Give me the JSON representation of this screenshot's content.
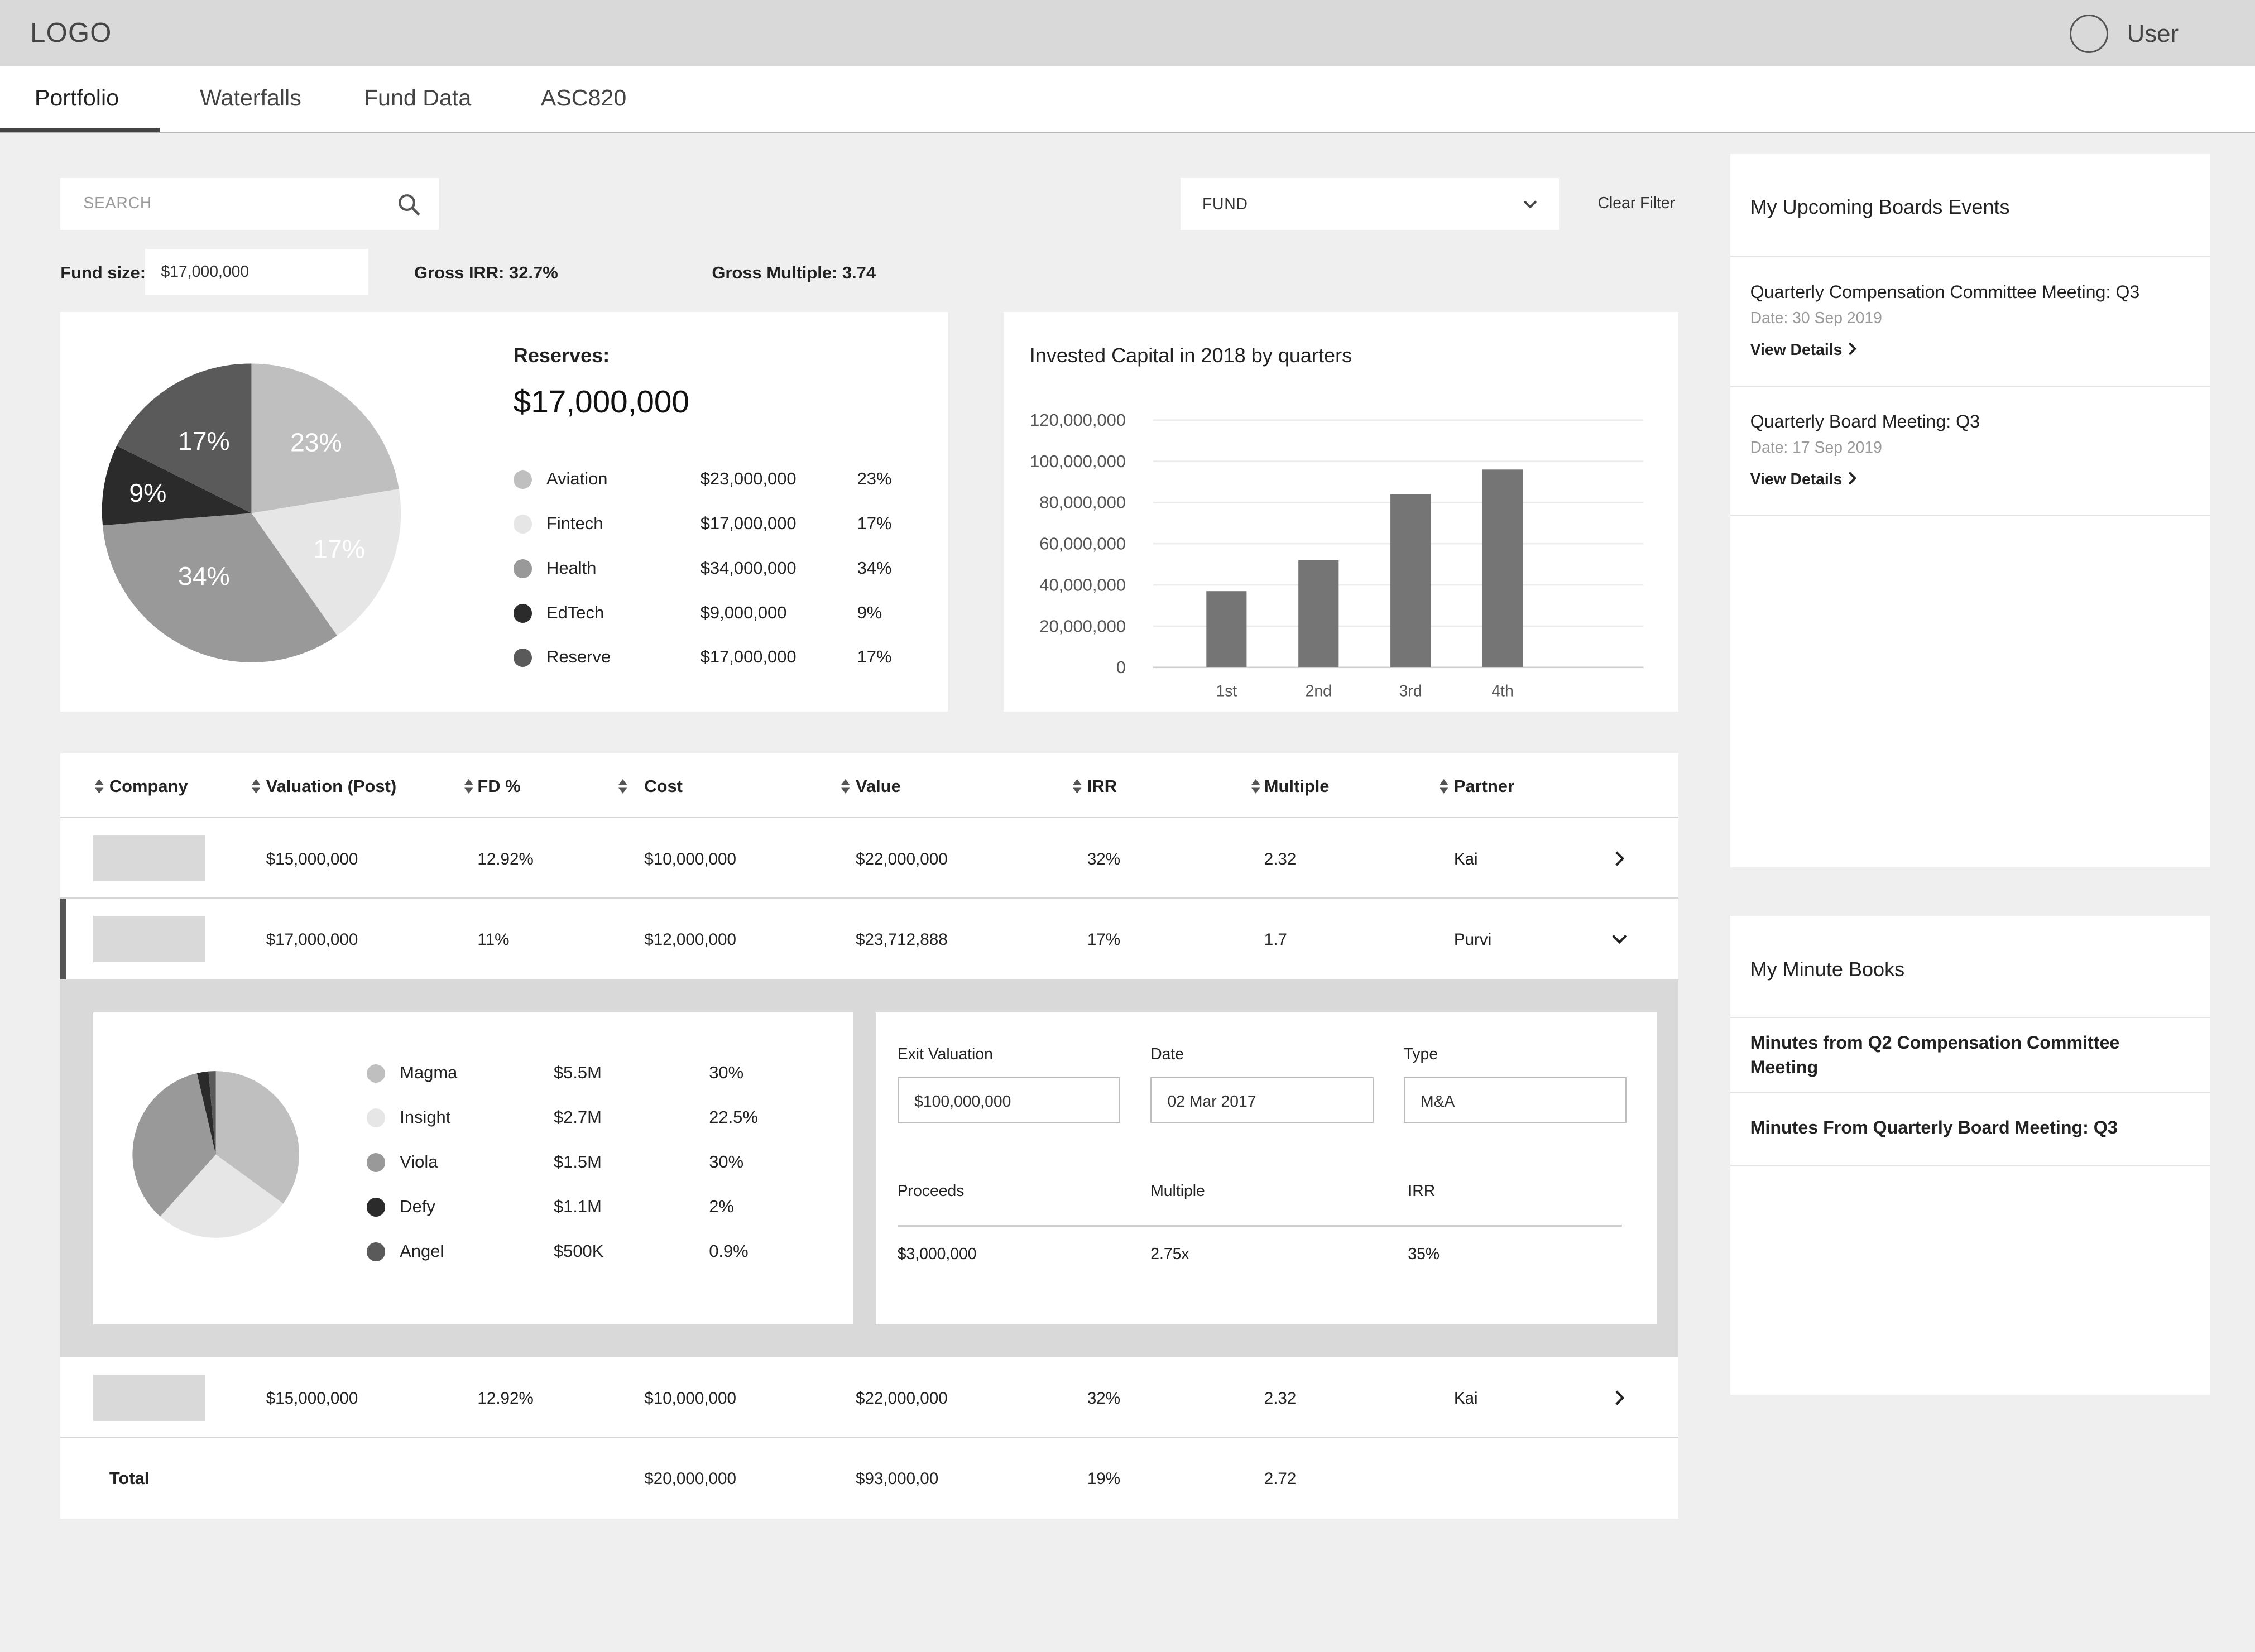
{
  "header": {
    "logo": "LOGO",
    "user_label": "User"
  },
  "tabs": [
    {
      "label": "Portfolio",
      "active": true
    },
    {
      "label": "Waterfalls",
      "active": false
    },
    {
      "label": "Fund Data",
      "active": false
    },
    {
      "label": "ASC820",
      "active": false
    }
  ],
  "filters": {
    "search_placeholder": "SEARCH",
    "fund_select": "FUND",
    "clear_filter": "Clear Filter"
  },
  "fund_stats": {
    "fund_size_label": "Fund size:",
    "fund_size_value": "$17,000,000",
    "gross_irr": "Gross IRR: 32.7%",
    "gross_multiple": "Gross Multiple: 3.74"
  },
  "reserves": {
    "title": "Reserves:",
    "value": "$17,000,000",
    "pie_labels": [
      "23%",
      "17%",
      "34%",
      "9%",
      "17%"
    ],
    "items": [
      {
        "name": "Aviation",
        "amount": "$23,000,000",
        "pct": "23%",
        "color": "#bfbfbf"
      },
      {
        "name": "Fintech",
        "amount": "$17,000,000",
        "pct": "17%",
        "color": "#e6e6e6"
      },
      {
        "name": "Health",
        "amount": "$34,000,000",
        "pct": "34%",
        "color": "#999999"
      },
      {
        "name": "EdTech",
        "amount": "$9,000,000",
        "pct": "9%",
        "color": "#2b2b2b"
      },
      {
        "name": "Reserve",
        "amount": "$17,000,000",
        "pct": "17%",
        "color": "#5a5a5a"
      }
    ]
  },
  "chart_data": {
    "type": "bar",
    "title": "Invested Capital in 2018 by quarters",
    "categories": [
      "1st",
      "2nd",
      "3rd",
      "4th"
    ],
    "values": [
      37000000,
      52000000,
      84000000,
      96000000
    ],
    "ylim": [
      0,
      120000000
    ],
    "y_ticks": [
      "0",
      "20,000,000",
      "40,000,000",
      "60,000,000",
      "80,000,000",
      "100,000,000",
      "120,000,000"
    ],
    "bar_color": "#757575",
    "grid": true
  },
  "table": {
    "columns": [
      "Company",
      "Valuation (Post)",
      "FD %",
      "Cost",
      "Value",
      "IRR",
      "Multiple",
      "Partner"
    ],
    "rows": [
      {
        "valuation": "$15,000,000",
        "fd": "12.92%",
        "cost": "$10,000,000",
        "value": "$22,000,000",
        "irr": "32%",
        "multiple": "2.32",
        "partner": "Kai",
        "expanded": false
      },
      {
        "valuation": "$17,000,000",
        "fd": "11%",
        "cost": "$12,000,000",
        "value": "$23,712,888",
        "irr": "17%",
        "multiple": "1.7",
        "partner": "Purvi",
        "expanded": true
      },
      {
        "valuation": "$15,000,000",
        "fd": "12.92%",
        "cost": "$10,000,000",
        "value": "$22,000,000",
        "irr": "32%",
        "multiple": "2.32",
        "partner": "Kai",
        "expanded": false
      }
    ],
    "total": {
      "label": "Total",
      "cost": "$20,000,000",
      "value": "$93,000,00",
      "irr": "19%",
      "multiple": "2.72"
    }
  },
  "expanded": {
    "investors": [
      {
        "name": "Magma",
        "amount": "$5.5M",
        "pct": "30%",
        "color": "#bfbfbf"
      },
      {
        "name": "Insight",
        "amount": "$2.7M",
        "pct": "22.5%",
        "color": "#e6e6e6"
      },
      {
        "name": "Viola",
        "amount": "$1.5M",
        "pct": "30%",
        "color": "#999999"
      },
      {
        "name": "Defy",
        "amount": "$1.1M",
        "pct": "2%",
        "color": "#2b2b2b"
      },
      {
        "name": "Angel",
        "amount": "$500K",
        "pct": "0.9%",
        "color": "#5a5a5a"
      }
    ],
    "exit": {
      "valuation_label": "Exit Valuation",
      "valuation_value": "$100,000,000",
      "date_label": "Date",
      "date_value": "02 Mar 2017",
      "type_label": "Type",
      "type_value": "M&A"
    },
    "proceeds": {
      "proceeds_label": "Proceeds",
      "multiple_label": "Multiple",
      "irr_label": "IRR",
      "proceeds_value": "$3,000,000",
      "multiple_value": "2.75x",
      "irr_value": "35%"
    }
  },
  "boards": {
    "title": "My Upcoming Boards Events",
    "events": [
      {
        "title": "Quarterly Compensation Committee Meeting: Q3",
        "date": "Date: 30 Sep 2019",
        "link": "View Details"
      },
      {
        "title": "Quarterly Board Meeting: Q3",
        "date": "Date: 17 Sep 2019",
        "link": "View Details"
      }
    ]
  },
  "minute_books": {
    "title": "My Minute Books",
    "items": [
      "Minutes from Q2 Compensation Committee Meeting",
      "Minutes From Quarterly Board Meeting: Q3"
    ]
  }
}
